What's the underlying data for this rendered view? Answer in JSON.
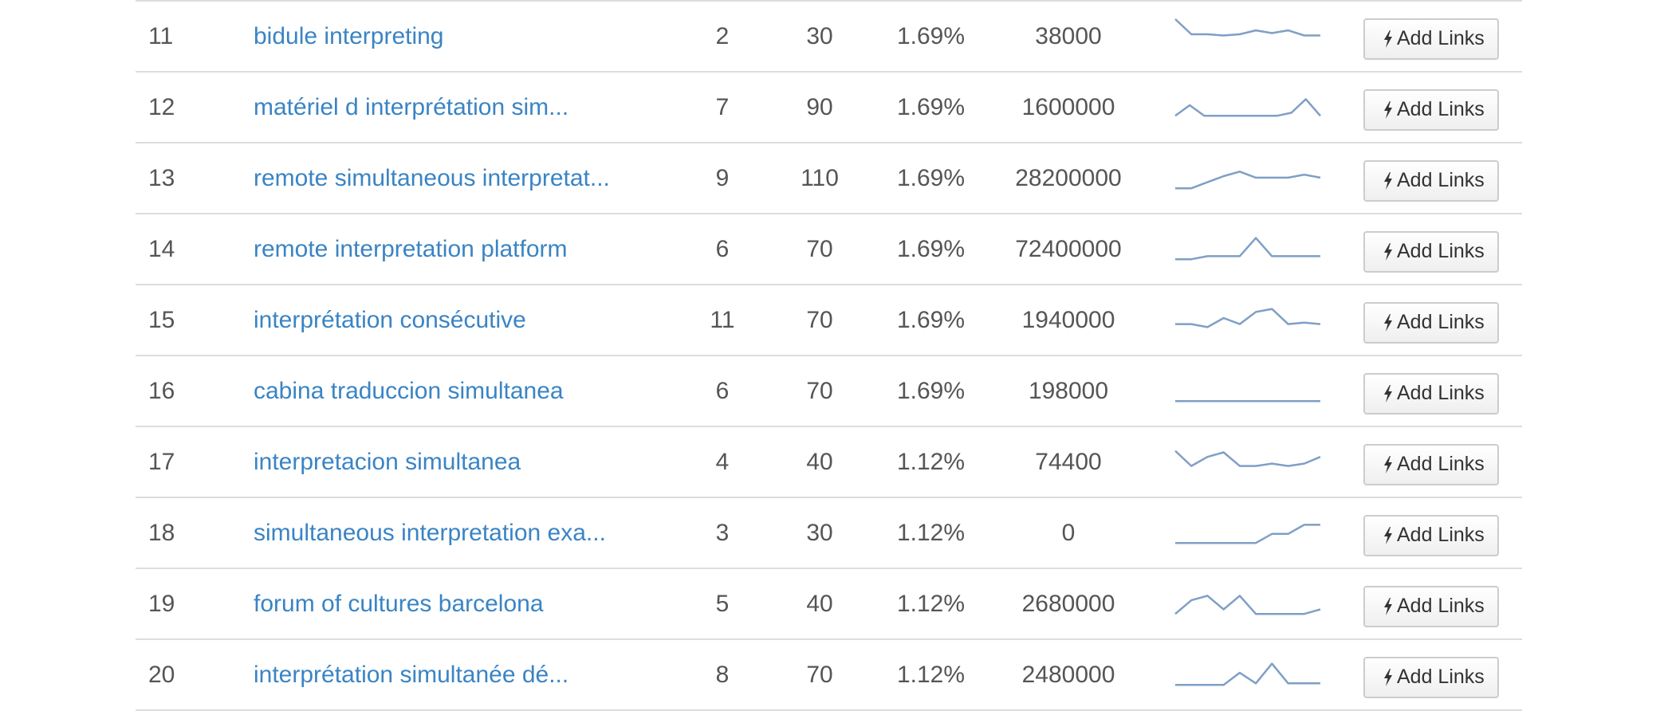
{
  "rows": [
    {
      "rank": "11",
      "keyword": "bidule interpreting",
      "col_a": "2",
      "col_b": "30",
      "col_c": "1.69%",
      "col_d": "38000",
      "trend": [
        10,
        5,
        5,
        4.6,
        5,
        6.3,
        5.4,
        6.3,
        4.6,
        4.6
      ],
      "button_label": "Add Links",
      "button_icon": "bolt-icon"
    },
    {
      "rank": "12",
      "keyword": "matériel d interprétation sim...",
      "col_a": "7",
      "col_b": "90",
      "col_c": "1.69%",
      "col_d": "1600000",
      "trend": [
        1.5,
        5,
        1.5,
        1.5,
        1.5,
        1.5,
        1.5,
        1.5,
        2.5,
        7,
        1.5
      ],
      "button_label": "Add Links",
      "button_icon": "bolt-icon"
    },
    {
      "rank": "13",
      "keyword": "remote simultaneous interpretat...",
      "col_a": "9",
      "col_b": "110",
      "col_c": "1.69%",
      "col_d": "28200000",
      "trend": [
        1,
        1,
        3,
        5,
        6.5,
        4.5,
        4.5,
        4.5,
        5.5,
        4.5
      ],
      "button_label": "Add Links",
      "button_icon": "bolt-icon"
    },
    {
      "rank": "14",
      "keyword": "remote interpretation platform",
      "col_a": "6",
      "col_b": "70",
      "col_c": "1.69%",
      "col_d": "72400000",
      "trend": [
        1,
        1,
        2,
        2,
        2,
        8,
        2,
        2,
        2,
        2
      ],
      "button_label": "Add Links",
      "button_icon": "bolt-icon"
    },
    {
      "rank": "15",
      "keyword": "interprétation consécutive",
      "col_a": "11",
      "col_b": "70",
      "col_c": "1.69%",
      "col_d": "1940000",
      "trend": [
        3,
        3,
        2,
        5,
        3,
        7,
        8,
        3,
        3.5,
        3
      ],
      "button_label": "Add Links",
      "button_icon": "bolt-icon"
    },
    {
      "rank": "16",
      "keyword": "cabina traduccion simultanea",
      "col_a": "6",
      "col_b": "70",
      "col_c": "1.69%",
      "col_d": "198000",
      "trend": [
        1,
        1,
        1,
        1,
        1,
        1,
        1,
        1,
        1,
        1
      ],
      "button_label": "Add Links",
      "button_icon": "bolt-icon"
    },
    {
      "rank": "17",
      "keyword": "interpretacion simultanea",
      "col_a": "4",
      "col_b": "40",
      "col_c": "1.12%",
      "col_d": "74400",
      "trend": [
        8,
        3,
        6,
        7.5,
        3,
        3,
        3.8,
        3,
        3.8,
        6
      ],
      "button_label": "Add Links",
      "button_icon": "bolt-icon"
    },
    {
      "rank": "18",
      "keyword": "simultaneous interpretation exa...",
      "col_a": "3",
      "col_b": "30",
      "col_c": "1.12%",
      "col_d": "0",
      "trend": [
        1,
        1,
        1,
        1,
        1,
        1,
        4,
        4,
        7,
        7
      ],
      "button_label": "Add Links",
      "button_icon": "bolt-icon"
    },
    {
      "rank": "19",
      "keyword": "forum of cultures barcelona",
      "col_a": "5",
      "col_b": "40",
      "col_c": "1.12%",
      "col_d": "2680000",
      "trend": [
        1,
        5.5,
        7,
        2.5,
        7,
        1,
        1,
        1,
        1,
        2.5
      ],
      "button_label": "Add Links",
      "button_icon": "bolt-icon"
    },
    {
      "rank": "20",
      "keyword": "interprétation simultanée dé...",
      "col_a": "8",
      "col_b": "70",
      "col_c": "1.12%",
      "col_d": "2480000",
      "trend": [
        1,
        1,
        1,
        1,
        5,
        1.5,
        8,
        1.5,
        1.5,
        1.5
      ],
      "button_label": "Add Links",
      "button_icon": "bolt-icon"
    }
  ],
  "colors": {
    "link": "#3a84c4",
    "text": "#555555",
    "sparkline": "#7f9fc5",
    "border": "#dddddd"
  }
}
